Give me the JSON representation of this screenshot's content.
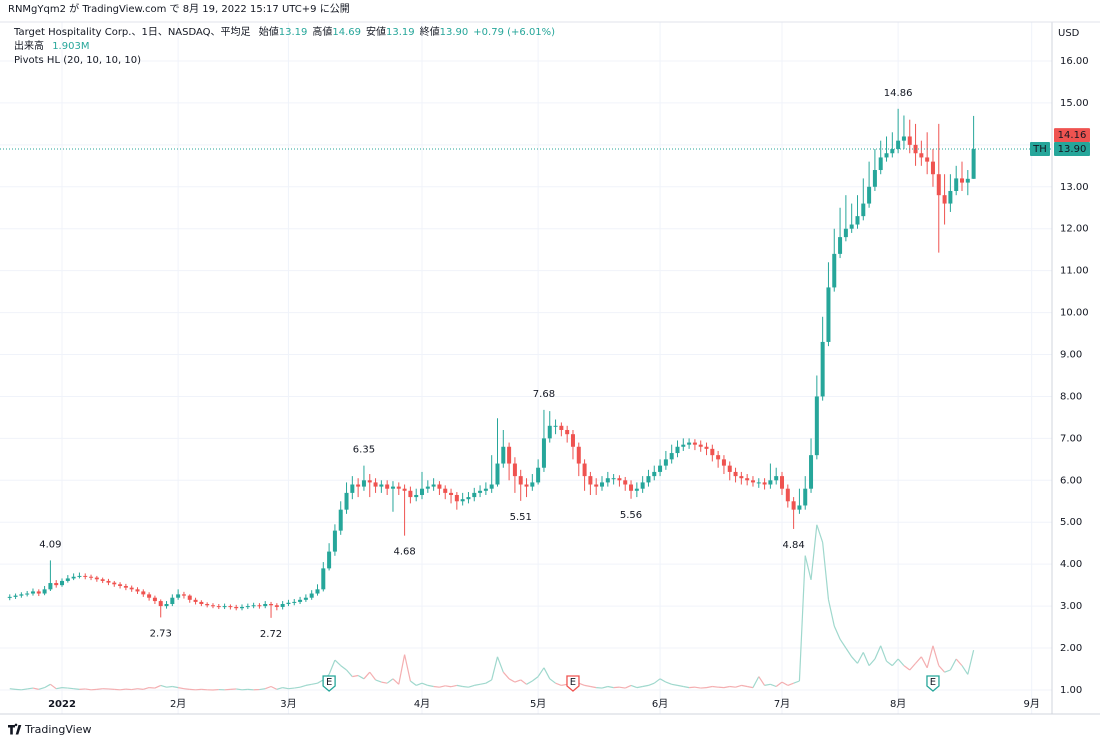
{
  "publish_note": "RNMgYqm2 が TradingView.com で 8月 19, 2022 15:17 UTC+9 に公開",
  "brand": "TradingView",
  "chart_data": {
    "type": "candlestick",
    "currency": "USD",
    "legend": {
      "name": "Target Hospitality Corp.、1日、NASDAQ、平均足",
      "items": [
        {
          "label": "始値",
          "value": 13.19
        },
        {
          "label": "高値",
          "value": 14.69
        },
        {
          "label": "安値",
          "value": 13.19
        },
        {
          "label": "終値",
          "value": 13.9,
          "text": "13.90"
        }
      ],
      "change": "+0.79 (+6.01%)"
    },
    "indicator": "Pivots HL (20, 10, 10, 10)",
    "up_color": "#26a69a",
    "down_color": "#ef5350",
    "volume_up_color": "#9fd8cd",
    "volume_down_color": "#f4aeb0",
    "grid": true,
    "xlim": [
      -1.68,
      179.5
    ],
    "xticks": [
      {
        "value": 9,
        "label": "2022"
      },
      {
        "value": 29,
        "label": "2月"
      },
      {
        "value": 48,
        "label": "3月"
      },
      {
        "value": 71,
        "label": "4月"
      },
      {
        "value": 91,
        "label": "5月"
      },
      {
        "value": 112,
        "label": "6月"
      },
      {
        "value": 133,
        "label": "7月"
      },
      {
        "value": 153,
        "label": "8月"
      },
      {
        "value": 176,
        "label": "9月"
      }
    ],
    "ylim": [
      0.88,
      16.93
    ],
    "yticks": [
      {
        "value": 1,
        "label": "1.00"
      },
      {
        "value": 2,
        "label": "2.00"
      },
      {
        "value": 3,
        "label": "3.00"
      },
      {
        "value": 4,
        "label": "4.00"
      },
      {
        "value": 5,
        "label": "5.00"
      },
      {
        "value": 6,
        "label": "6.00"
      },
      {
        "value": 7,
        "label": "7.00"
      },
      {
        "value": 8,
        "label": "8.00"
      },
      {
        "value": 9,
        "label": "9.00"
      },
      {
        "value": 10,
        "label": "10.00"
      },
      {
        "value": 11,
        "label": "11.00"
      },
      {
        "value": 12,
        "label": "12.00"
      },
      {
        "value": 13,
        "label": "13.00"
      },
      {
        "value": 14,
        "label": "14.00"
      },
      {
        "value": 15,
        "label": "15.00"
      },
      {
        "value": 16,
        "label": "16.00"
      }
    ],
    "open": [
      3.2,
      3.22,
      3.25,
      3.28,
      3.3,
      3.35,
      3.3,
      3.4,
      3.55,
      3.5,
      3.6,
      3.66,
      3.7,
      3.72,
      3.7,
      3.68,
      3.64,
      3.6,
      3.56,
      3.52,
      3.48,
      3.44,
      3.4,
      3.35,
      3.28,
      3.2,
      3.12,
      3.0,
      3.05,
      3.2,
      3.28,
      3.25,
      3.15,
      3.1,
      3.05,
      3.02,
      3.0,
      2.98,
      3.0,
      2.98,
      2.95,
      2.98,
      3.0,
      3.02,
      3.0,
      3.05,
      3.02,
      2.98,
      3.05,
      3.08,
      3.1,
      3.15,
      3.2,
      3.3,
      3.4,
      3.9,
      4.3,
      4.8,
      5.3,
      5.7,
      5.9,
      5.85,
      6.0,
      5.95,
      5.85,
      5.9,
      5.8,
      5.85,
      5.8,
      5.75,
      5.6,
      5.65,
      5.8,
      5.85,
      5.9,
      5.8,
      5.7,
      5.65,
      5.5,
      5.55,
      5.6,
      5.7,
      5.75,
      5.8,
      5.9,
      6.4,
      6.8,
      6.4,
      6.1,
      5.9,
      5.85,
      5.95,
      6.3,
      7.0,
      7.3,
      7.3,
      7.2,
      7.1,
      6.8,
      6.4,
      6.1,
      5.9,
      5.85,
      5.95,
      6.05,
      6.05,
      6.0,
      5.9,
      5.75,
      5.8,
      5.95,
      6.1,
      6.2,
      6.35,
      6.5,
      6.65,
      6.8,
      6.85,
      6.9,
      6.85,
      6.8,
      6.75,
      6.6,
      6.5,
      6.35,
      6.2,
      6.1,
      6.05,
      6.0,
      5.95,
      5.95,
      5.9,
      6.0,
      6.1,
      5.8,
      5.5,
      5.3,
      5.4,
      5.8,
      6.6,
      8.0,
      9.3,
      10.6,
      11.4,
      11.8,
      12.0,
      12.1,
      12.3,
      12.6,
      13.0,
      13.4,
      13.7,
      13.8,
      13.9,
      14.1,
      14.2,
      14.0,
      13.8,
      13.7,
      13.6,
      13.3,
      12.8,
      12.6,
      12.9,
      13.2,
      13.1,
      13.19
    ],
    "high": [
      3.28,
      3.3,
      3.33,
      3.36,
      3.42,
      3.4,
      3.48,
      4.09,
      3.62,
      3.66,
      3.74,
      3.78,
      3.8,
      3.78,
      3.75,
      3.72,
      3.68,
      3.65,
      3.6,
      3.57,
      3.53,
      3.49,
      3.45,
      3.4,
      3.33,
      3.25,
      3.16,
      3.12,
      3.28,
      3.4,
      3.34,
      3.28,
      3.2,
      3.14,
      3.09,
      3.07,
      3.05,
      3.06,
      3.04,
      3.03,
      3.04,
      3.06,
      3.08,
      3.07,
      3.12,
      3.1,
      3.07,
      3.12,
      3.15,
      3.17,
      3.22,
      3.28,
      3.38,
      3.52,
      4.05,
      4.5,
      4.95,
      5.5,
      5.95,
      6.1,
      6.05,
      6.35,
      6.15,
      6.05,
      6.0,
      6.0,
      5.98,
      5.95,
      5.9,
      5.85,
      5.8,
      6.2,
      6.0,
      6.05,
      5.98,
      5.88,
      5.8,
      5.72,
      5.7,
      5.72,
      5.82,
      5.88,
      5.95,
      6.6,
      7.48,
      7.2,
      6.9,
      6.55,
      6.25,
      6.05,
      6.15,
      6.5,
      7.68,
      7.65,
      7.45,
      7.38,
      7.3,
      7.2,
      6.9,
      6.5,
      6.2,
      6.05,
      6.1,
      6.2,
      6.15,
      6.12,
      6.08,
      6.0,
      5.95,
      6.1,
      6.25,
      6.35,
      6.5,
      6.7,
      6.85,
      6.95,
      7.0,
      7.0,
      6.98,
      6.95,
      6.9,
      6.85,
      6.7,
      6.6,
      6.45,
      6.3,
      6.2,
      6.15,
      6.1,
      6.05,
      6.05,
      6.4,
      6.3,
      6.2,
      5.9,
      5.6,
      5.8,
      6.1,
      7.0,
      8.5,
      9.9,
      11.2,
      12.0,
      12.5,
      12.8,
      12.6,
      12.8,
      13.2,
      13.6,
      13.9,
      14.1,
      14.2,
      14.3,
      14.86,
      14.7,
      14.6,
      14.5,
      14.1,
      14.3,
      13.9,
      14.5,
      13.3,
      13.3,
      13.5,
      13.6,
      13.4,
      14.69
    ],
    "low": [
      3.14,
      3.17,
      3.2,
      3.23,
      3.25,
      3.24,
      3.26,
      3.36,
      3.44,
      3.46,
      3.56,
      3.62,
      3.66,
      3.64,
      3.62,
      3.58,
      3.55,
      3.5,
      3.46,
      3.42,
      3.38,
      3.34,
      3.29,
      3.22,
      3.13,
      3.05,
      2.73,
      2.94,
      3.0,
      3.15,
      3.18,
      3.08,
      3.04,
      3.0,
      2.97,
      2.95,
      2.93,
      2.93,
      2.92,
      2.9,
      2.9,
      2.93,
      2.95,
      2.94,
      2.95,
      2.72,
      2.9,
      2.92,
      3.0,
      3.02,
      3.05,
      3.1,
      3.15,
      3.25,
      3.35,
      3.85,
      4.2,
      4.7,
      5.2,
      5.55,
      5.6,
      5.75,
      5.6,
      5.7,
      5.7,
      5.65,
      5.25,
      5.65,
      4.68,
      5.45,
      5.5,
      5.55,
      5.7,
      5.75,
      5.65,
      5.55,
      5.45,
      5.3,
      5.4,
      5.45,
      5.5,
      5.6,
      5.65,
      5.7,
      5.85,
      6.3,
      6.0,
      5.7,
      5.51,
      5.6,
      5.75,
      5.9,
      6.2,
      6.9,
      7.1,
      7.05,
      6.9,
      6.5,
      6.1,
      5.75,
      5.65,
      5.65,
      5.75,
      5.85,
      5.9,
      5.85,
      5.75,
      5.56,
      5.6,
      5.7,
      5.85,
      6.0,
      6.1,
      6.25,
      6.4,
      6.55,
      6.7,
      6.75,
      6.72,
      6.68,
      6.6,
      6.45,
      6.3,
      6.15,
      6.0,
      5.95,
      5.9,
      5.88,
      5.85,
      5.82,
      5.78,
      5.8,
      5.9,
      5.65,
      5.35,
      4.84,
      5.2,
      5.3,
      5.7,
      6.5,
      7.9,
      9.2,
      10.5,
      11.3,
      11.7,
      11.9,
      12.0,
      12.2,
      12.5,
      12.9,
      13.3,
      13.6,
      13.7,
      13.8,
      13.9,
      13.8,
      13.5,
      13.5,
      13.3,
      13.0,
      11.43,
      12.1,
      12.4,
      12.8,
      12.9,
      12.8,
      13.19
    ],
    "close": [
      3.22,
      3.25,
      3.28,
      3.3,
      3.35,
      3.3,
      3.4,
      3.55,
      3.5,
      3.6,
      3.66,
      3.7,
      3.72,
      3.7,
      3.68,
      3.64,
      3.6,
      3.56,
      3.52,
      3.48,
      3.44,
      3.4,
      3.35,
      3.28,
      3.2,
      3.12,
      3.0,
      3.05,
      3.2,
      3.28,
      3.25,
      3.15,
      3.1,
      3.05,
      3.02,
      3.0,
      2.98,
      3.0,
      2.98,
      2.95,
      2.98,
      3.0,
      3.02,
      3.0,
      3.05,
      3.02,
      2.98,
      3.05,
      3.08,
      3.1,
      3.15,
      3.2,
      3.3,
      3.4,
      3.9,
      4.3,
      4.8,
      5.3,
      5.7,
      5.9,
      5.85,
      6.0,
      5.95,
      5.85,
      5.9,
      5.8,
      5.85,
      5.8,
      5.75,
      5.6,
      5.65,
      5.8,
      5.85,
      5.9,
      5.8,
      5.7,
      5.65,
      5.5,
      5.55,
      5.6,
      5.7,
      5.75,
      5.8,
      5.9,
      6.4,
      6.8,
      6.4,
      6.1,
      5.9,
      5.85,
      5.95,
      6.3,
      7.0,
      7.3,
      7.3,
      7.2,
      7.1,
      6.8,
      6.4,
      6.1,
      5.9,
      5.85,
      5.95,
      6.05,
      6.05,
      6.0,
      5.9,
      5.75,
      5.8,
      5.95,
      6.1,
      6.2,
      6.35,
      6.5,
      6.65,
      6.8,
      6.85,
      6.9,
      6.85,
      6.8,
      6.75,
      6.6,
      6.5,
      6.35,
      6.2,
      6.1,
      6.05,
      6.0,
      5.95,
      5.95,
      5.9,
      6.0,
      6.1,
      5.8,
      5.5,
      5.3,
      5.4,
      5.8,
      6.6,
      8.0,
      9.3,
      10.6,
      11.4,
      11.8,
      12.0,
      12.1,
      12.3,
      12.6,
      13.0,
      13.4,
      13.7,
      13.8,
      13.9,
      14.1,
      14.2,
      14.0,
      13.8,
      13.7,
      13.6,
      13.3,
      12.8,
      12.6,
      12.9,
      13.2,
      13.1,
      13.19,
      13.9
    ],
    "volume": {
      "name": "出来高",
      "label": "1.903M",
      "values": [
        0.15,
        0.12,
        0.1,
        0.14,
        0.18,
        0.12,
        0.2,
        0.35,
        0.15,
        0.2,
        0.18,
        0.15,
        0.12,
        0.14,
        0.1,
        0.12,
        0.15,
        0.14,
        0.12,
        0.1,
        0.13,
        0.11,
        0.15,
        0.12,
        0.2,
        0.18,
        0.3,
        0.22,
        0.25,
        0.2,
        0.15,
        0.12,
        0.1,
        0.12,
        0.1,
        0.09,
        0.11,
        0.1,
        0.12,
        0.14,
        0.1,
        0.12,
        0.1,
        0.11,
        0.15,
        0.25,
        0.12,
        0.2,
        0.15,
        0.18,
        0.22,
        0.3,
        0.35,
        0.4,
        0.55,
        0.8,
        1.45,
        1.2,
        1.0,
        0.7,
        0.75,
        0.6,
        0.9,
        0.55,
        0.45,
        0.4,
        0.6,
        0.35,
        1.7,
        0.5,
        0.3,
        0.4,
        0.3,
        0.25,
        0.22,
        0.28,
        0.24,
        0.3,
        0.25,
        0.22,
        0.3,
        0.35,
        0.4,
        0.55,
        1.6,
        0.9,
        0.6,
        0.45,
        0.55,
        0.35,
        0.5,
        0.7,
        1.1,
        0.6,
        0.4,
        0.3,
        0.35,
        0.5,
        0.4,
        0.3,
        0.25,
        0.2,
        0.18,
        0.25,
        0.2,
        0.22,
        0.18,
        0.3,
        0.2,
        0.25,
        0.3,
        0.4,
        0.6,
        0.45,
        0.35,
        0.3,
        0.25,
        0.2,
        0.22,
        0.18,
        0.2,
        0.25,
        0.22,
        0.2,
        0.25,
        0.22,
        0.3,
        0.25,
        0.2,
        0.7,
        0.3,
        0.35,
        0.25,
        0.45,
        0.3,
        0.4,
        0.5,
        6.2,
        5.1,
        7.6,
        6.8,
        4.2,
        3.0,
        2.4,
        2.0,
        1.6,
        1.3,
        1.8,
        1.2,
        1.5,
        2.1,
        1.4,
        1.2,
        1.5,
        1.2,
        1.0,
        1.3,
        1.6,
        1.1,
        2.1,
        1.2,
        0.9,
        1.0,
        1.5,
        1.2,
        0.8,
        1.903
      ]
    },
    "pivot_highs": [
      4.09,
      6.35,
      7.68,
      14.86
    ],
    "pivot_lows": [
      2.73,
      2.72,
      4.68,
      5.51,
      5.56,
      4.84
    ],
    "events": [
      {
        "label": "E",
        "index": 55,
        "color": "#26a69a"
      },
      {
        "label": "E",
        "index": 97,
        "color": "#ef5350"
      },
      {
        "label": "E",
        "index": 159,
        "color": "#26a69a"
      }
    ],
    "price_tags": [
      {
        "value": 14.16,
        "label": "14.16",
        "color": "#ef5350"
      },
      {
        "symbol": "TH",
        "value": 13.9,
        "label": "13.90",
        "color": "#26a69a",
        "line": true
      }
    ]
  }
}
